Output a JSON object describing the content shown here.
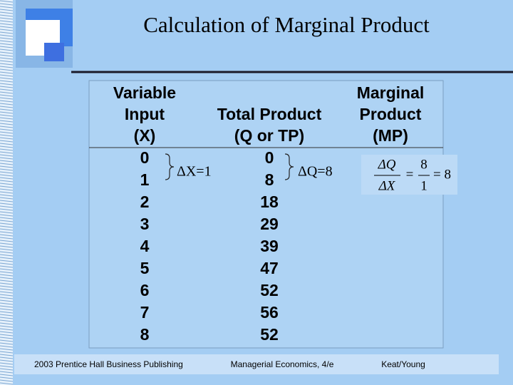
{
  "slide": {
    "title": "Calculation of Marginal Product",
    "table": {
      "headers": [
        [
          "Variable",
          "Input",
          "(X)"
        ],
        [
          "Total Product",
          "(Q or TP)"
        ],
        [
          "Marginal",
          "Product",
          "(MP)"
        ]
      ],
      "rows": [
        [
          "0",
          "0"
        ],
        [
          "1",
          "8"
        ],
        [
          "2",
          "18"
        ],
        [
          "3",
          "29"
        ],
        [
          "4",
          "39"
        ],
        [
          "5",
          "47"
        ],
        [
          "6",
          "52"
        ],
        [
          "7",
          "56"
        ],
        [
          "8",
          "52"
        ]
      ]
    },
    "annotations": {
      "delta_x": "ΔX=1",
      "delta_q": "ΔQ=8"
    },
    "formula": {
      "numerator": "ΔQ",
      "denominator": "ΔX",
      "equals": "=",
      "value_numerator": "8",
      "value_denominator": "1",
      "result": "= 8"
    },
    "footer": {
      "left": "2003 Prentice Hall Business Publishing",
      "center": "Managerial Economics, 4/e",
      "right": "Keat/Young"
    }
  }
}
